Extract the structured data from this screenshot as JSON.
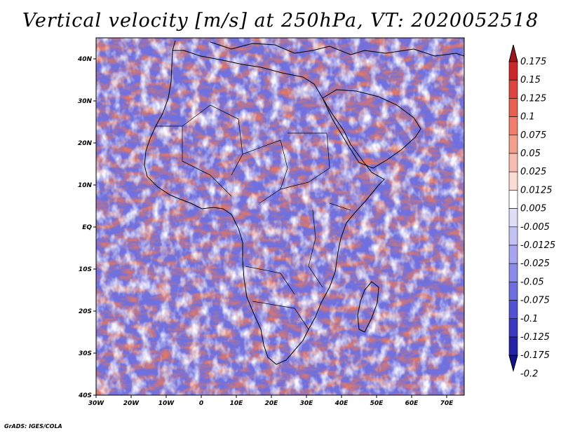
{
  "title": "Vertical velocity [m/s] at 250hPa, VT: 2020052518",
  "credit": "GrADS: IGES/COLA",
  "map": {
    "lon_range": [
      -30,
      75
    ],
    "lat_range": [
      -40,
      45
    ],
    "x_ticks": [
      "30W",
      "20W",
      "10W",
      "0",
      "10E",
      "20E",
      "30E",
      "40E",
      "50E",
      "60E",
      "70E"
    ],
    "y_ticks": [
      "40S",
      "30S",
      "20S",
      "10S",
      "EQ",
      "10N",
      "20N",
      "30N",
      "40N"
    ],
    "x_tick_values": [
      -30,
      -20,
      -10,
      0,
      10,
      20,
      30,
      40,
      50,
      60,
      70
    ],
    "y_tick_values": [
      -40,
      -30,
      -20,
      -10,
      0,
      10,
      20,
      30,
      40
    ],
    "coastline_color": "#000000"
  },
  "colorbar": {
    "labels": [
      "0.175",
      "0.15",
      "0.125",
      "0.1",
      "0.075",
      "0.05",
      "0.025",
      "0.0125",
      "0.005",
      "-0.005",
      "-0.0125",
      "-0.025",
      "-0.05",
      "-0.075",
      "-0.1",
      "-0.125",
      "-0.175",
      "-0.2"
    ],
    "colors": [
      "#a0141e",
      "#c8282d",
      "#dc463f",
      "#e86050",
      "#ef7e6c",
      "#f29f8c",
      "#f6beb0",
      "#fbdcd4",
      "#ffffff",
      "#dedef8",
      "#c2c2f2",
      "#a6a6ee",
      "#8a8ae8",
      "#6e6ee0",
      "#5252d2",
      "#3a3ac0",
      "#2323a4",
      "#12128a"
    ]
  },
  "shading": {
    "positive_color": "#e07766",
    "negative_color": "#7070de",
    "neutral_color": "#f4f4ff"
  }
}
